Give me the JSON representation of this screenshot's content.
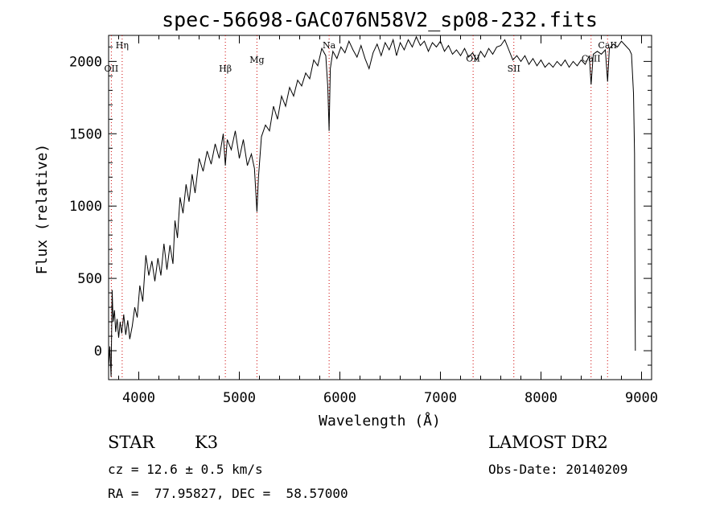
{
  "chart_data": {
    "type": "line",
    "title": "spec-56698-GAC076N58V2_sp08-232.fits",
    "xlabel": "Wavelength (Å)",
    "ylabel": "Flux (relative)",
    "xlim": [
      3700,
      9100
    ],
    "ylim": [
      -200,
      2180
    ],
    "xticks": [
      4000,
      5000,
      6000,
      7000,
      8000,
      9000
    ],
    "yticks": [
      0,
      500,
      1000,
      1500,
      2000
    ],
    "grid": false,
    "line_color": "#000000",
    "marker_color": "#cc0000",
    "spectral_lines": [
      {
        "label": "OII",
        "x": 3727,
        "label_y": 1930
      },
      {
        "label": "Hη",
        "x": 3835,
        "label_y": 2090
      },
      {
        "label": "Hβ",
        "x": 4861,
        "label_y": 1930
      },
      {
        "label": "Mg",
        "x": 5175,
        "label_y": 1990
      },
      {
        "label": "Na",
        "x": 5893,
        "label_y": 2090
      },
      {
        "label": "OII",
        "x": 7325,
        "label_y": 2000
      },
      {
        "label": "SII",
        "x": 7730,
        "label_y": 1930
      },
      {
        "label": "CaII",
        "x": 8498,
        "label_y": 2000
      },
      {
        "label": "CaII",
        "x": 8662,
        "label_y": 2090
      }
    ],
    "spectrum": [
      [
        3700,
        -120
      ],
      [
        3712,
        30
      ],
      [
        3725,
        -180
      ],
      [
        3735,
        420
      ],
      [
        3745,
        200
      ],
      [
        3758,
        280
      ],
      [
        3770,
        130
      ],
      [
        3785,
        220
      ],
      [
        3800,
        90
      ],
      [
        3815,
        200
      ],
      [
        3830,
        120
      ],
      [
        3850,
        250
      ],
      [
        3870,
        110
      ],
      [
        3890,
        210
      ],
      [
        3910,
        80
      ],
      [
        3935,
        170
      ],
      [
        3960,
        300
      ],
      [
        3985,
        230
      ],
      [
        4010,
        450
      ],
      [
        4040,
        340
      ],
      [
        4070,
        660
      ],
      [
        4100,
        520
      ],
      [
        4130,
        620
      ],
      [
        4160,
        480
      ],
      [
        4190,
        640
      ],
      [
        4220,
        520
      ],
      [
        4250,
        740
      ],
      [
        4280,
        560
      ],
      [
        4310,
        730
      ],
      [
        4340,
        600
      ],
      [
        4360,
        900
      ],
      [
        4385,
        780
      ],
      [
        4410,
        1060
      ],
      [
        4440,
        950
      ],
      [
        4470,
        1150
      ],
      [
        4500,
        1030
      ],
      [
        4530,
        1220
      ],
      [
        4560,
        1090
      ],
      [
        4600,
        1330
      ],
      [
        4640,
        1240
      ],
      [
        4680,
        1380
      ],
      [
        4720,
        1290
      ],
      [
        4760,
        1430
      ],
      [
        4800,
        1330
      ],
      [
        4840,
        1500
      ],
      [
        4861,
        1280
      ],
      [
        4880,
        1460
      ],
      [
        4920,
        1390
      ],
      [
        4960,
        1520
      ],
      [
        5000,
        1330
      ],
      [
        5040,
        1460
      ],
      [
        5080,
        1280
      ],
      [
        5120,
        1360
      ],
      [
        5150,
        1260
      ],
      [
        5175,
        960
      ],
      [
        5190,
        1200
      ],
      [
        5220,
        1480
      ],
      [
        5260,
        1560
      ],
      [
        5300,
        1520
      ],
      [
        5340,
        1690
      ],
      [
        5380,
        1600
      ],
      [
        5420,
        1760
      ],
      [
        5460,
        1690
      ],
      [
        5500,
        1820
      ],
      [
        5540,
        1760
      ],
      [
        5580,
        1870
      ],
      [
        5620,
        1830
      ],
      [
        5660,
        1920
      ],
      [
        5700,
        1880
      ],
      [
        5740,
        2010
      ],
      [
        5780,
        1970
      ],
      [
        5820,
        2090
      ],
      [
        5860,
        2040
      ],
      [
        5880,
        1820
      ],
      [
        5893,
        1520
      ],
      [
        5905,
        1950
      ],
      [
        5930,
        2070
      ],
      [
        5970,
        2020
      ],
      [
        6010,
        2100
      ],
      [
        6050,
        2060
      ],
      [
        6090,
        2140
      ],
      [
        6130,
        2080
      ],
      [
        6170,
        2030
      ],
      [
        6210,
        2110
      ],
      [
        6250,
        2020
      ],
      [
        6290,
        1950
      ],
      [
        6330,
        2060
      ],
      [
        6370,
        2120
      ],
      [
        6410,
        2040
      ],
      [
        6450,
        2130
      ],
      [
        6490,
        2080
      ],
      [
        6530,
        2150
      ],
      [
        6563,
        2040
      ],
      [
        6600,
        2130
      ],
      [
        6640,
        2080
      ],
      [
        6680,
        2150
      ],
      [
        6720,
        2100
      ],
      [
        6760,
        2170
      ],
      [
        6800,
        2110
      ],
      [
        6840,
        2140
      ],
      [
        6880,
        2070
      ],
      [
        6920,
        2130
      ],
      [
        6960,
        2100
      ],
      [
        7000,
        2140
      ],
      [
        7040,
        2070
      ],
      [
        7080,
        2110
      ],
      [
        7120,
        2050
      ],
      [
        7160,
        2080
      ],
      [
        7200,
        2040
      ],
      [
        7240,
        2090
      ],
      [
        7280,
        2030
      ],
      [
        7320,
        2060
      ],
      [
        7360,
        2010
      ],
      [
        7400,
        2070
      ],
      [
        7440,
        2030
      ],
      [
        7480,
        2090
      ],
      [
        7520,
        2050
      ],
      [
        7560,
        2100
      ],
      [
        7600,
        2110
      ],
      [
        7640,
        2150
      ],
      [
        7680,
        2080
      ],
      [
        7720,
        2010
      ],
      [
        7760,
        2040
      ],
      [
        7800,
        2000
      ],
      [
        7840,
        2040
      ],
      [
        7880,
        1980
      ],
      [
        7920,
        2020
      ],
      [
        7960,
        1970
      ],
      [
        8000,
        2010
      ],
      [
        8040,
        1960
      ],
      [
        8080,
        1990
      ],
      [
        8120,
        1960
      ],
      [
        8160,
        2000
      ],
      [
        8200,
        1970
      ],
      [
        8240,
        2010
      ],
      [
        8280,
        1960
      ],
      [
        8320,
        2000
      ],
      [
        8360,
        1970
      ],
      [
        8400,
        2010
      ],
      [
        8440,
        1980
      ],
      [
        8480,
        2040
      ],
      [
        8498,
        1840
      ],
      [
        8520,
        2050
      ],
      [
        8560,
        2070
      ],
      [
        8600,
        2050
      ],
      [
        8640,
        2080
      ],
      [
        8662,
        1860
      ],
      [
        8680,
        2090
      ],
      [
        8720,
        2120
      ],
      [
        8760,
        2100
      ],
      [
        8800,
        2140
      ],
      [
        8840,
        2110
      ],
      [
        8880,
        2080
      ],
      [
        8900,
        2050
      ],
      [
        8920,
        1780
      ],
      [
        8930,
        1360
      ],
      [
        8935,
        400
      ],
      [
        8938,
        0
      ]
    ]
  },
  "info": {
    "object_class": "STAR",
    "subclass": "K3",
    "survey": "LAMOST DR2",
    "cz": "cz = 12.6 ± 0.5 km/s",
    "obs_date": "Obs-Date: 20140209",
    "coords": "RA =  77.95827, DEC =  58.57000"
  }
}
